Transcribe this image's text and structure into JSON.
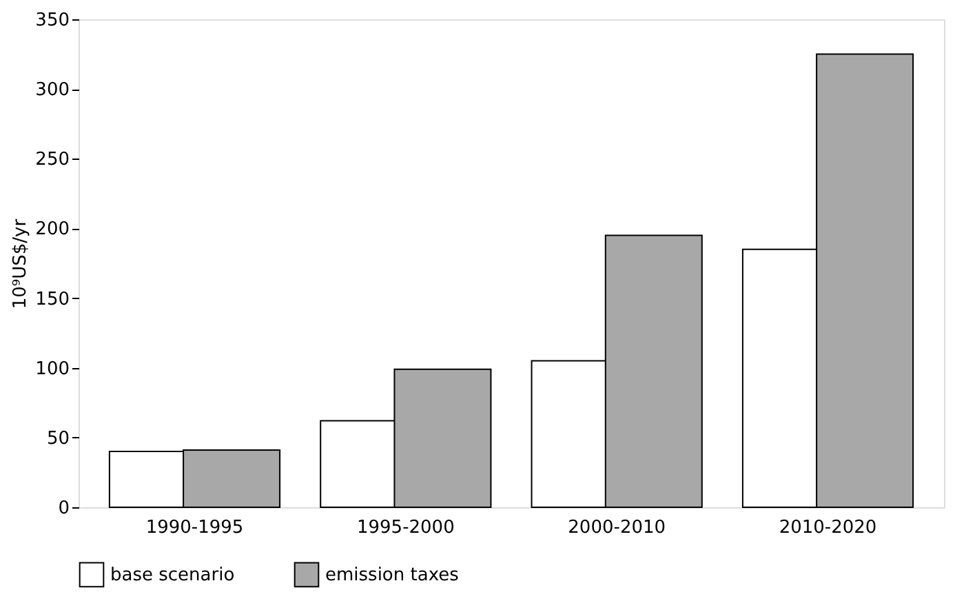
{
  "chart_data": {
    "type": "bar",
    "ylabel": "10⁹US$/yr",
    "categories": [
      "1990-1995",
      "1995-2000",
      "2000-2010",
      "2010-2020"
    ],
    "series": [
      {
        "name": "base scenario",
        "color": "#ffffff",
        "values": [
          40,
          62,
          105,
          185
        ]
      },
      {
        "name": "emission taxes",
        "color": "#a8a8a8",
        "values": [
          41,
          99,
          195,
          325
        ]
      }
    ],
    "ylim": [
      0,
      350
    ],
    "yticks": [
      0,
      50,
      100,
      150,
      200,
      250,
      300,
      350
    ],
    "grid": false,
    "legend": "bottom"
  }
}
